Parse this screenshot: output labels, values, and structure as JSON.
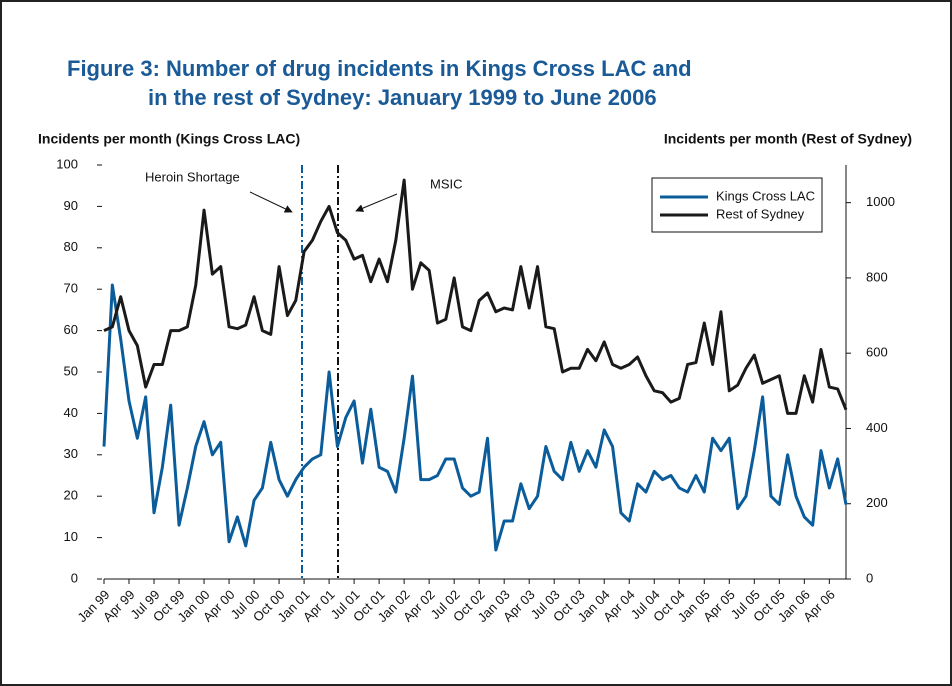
{
  "chart_data": {
    "type": "line",
    "title": [
      "Figure 3: Number of drug incidents in Kings Cross LAC and",
      "in the rest of Sydney: January 1999 to June 2006"
    ],
    "y_axis_label": "Incidents per month (Kings Cross LAC)",
    "y2_axis_label": "Incidents per month (Rest of Sydney)",
    "categories": [
      "Jan 99",
      null,
      null,
      "Apr 99",
      null,
      null,
      "Jul 99",
      null,
      null,
      "Oct 99",
      null,
      null,
      "Jan 00",
      null,
      null,
      "Apr 00",
      null,
      null,
      "Jul 00",
      null,
      null,
      "Oct 00",
      null,
      null,
      "Jan 01",
      null,
      null,
      "Apr 01",
      null,
      null,
      "Jul 01",
      null,
      null,
      "Oct 01",
      null,
      null,
      "Jan 02",
      null,
      null,
      "Apr 02",
      null,
      null,
      "Jul 02",
      null,
      null,
      "Oct 02",
      null,
      null,
      "Jan 03",
      null,
      null,
      "Apr 03",
      null,
      null,
      "Jul 03",
      null,
      null,
      "Oct 03",
      null,
      null,
      "Jan 04",
      null,
      null,
      "Apr 04",
      null,
      null,
      "Jul 04",
      null,
      null,
      "Oct 04",
      null,
      null,
      "Jan 05",
      null,
      null,
      "Apr 05",
      null,
      null,
      "Jul 05",
      null,
      null,
      "Oct 05",
      null,
      null,
      "Jan 06",
      null,
      null,
      "Apr 06",
      null,
      null
    ],
    "series": [
      {
        "name": "Kings Cross LAC",
        "color": "#0b5c9a",
        "axis": "y",
        "values": [
          32,
          71,
          58,
          43,
          34,
          44,
          16,
          27,
          42,
          13,
          22,
          32,
          38,
          30,
          33,
          9,
          15,
          8,
          19,
          22,
          33,
          24,
          20,
          24,
          27,
          29,
          30,
          50,
          32,
          39,
          43,
          28,
          41,
          27,
          26,
          21,
          34,
          49,
          24,
          24,
          25,
          29,
          29,
          22,
          20,
          21,
          34,
          7,
          14,
          14,
          23,
          17,
          20,
          32,
          26,
          24,
          33,
          26,
          31,
          27,
          36,
          32,
          16,
          14,
          23,
          21,
          26,
          24,
          25,
          22,
          21,
          25,
          21,
          34,
          31,
          34,
          17,
          20,
          31,
          44,
          20,
          18,
          30,
          20,
          15,
          13,
          31,
          22,
          29,
          18
        ]
      },
      {
        "name": "Rest of Sydney",
        "color": "#1a1a1a",
        "axis": "y2",
        "values": [
          660,
          670,
          750,
          660,
          620,
          510,
          570,
          570,
          660,
          660,
          670,
          780,
          980,
          810,
          830,
          670,
          665,
          675,
          750,
          660,
          650,
          830,
          700,
          740,
          870,
          900,
          950,
          990,
          920,
          900,
          850,
          860,
          790,
          850,
          790,
          900,
          1060,
          770,
          840,
          820,
          680,
          690,
          800,
          670,
          660,
          740,
          760,
          710,
          720,
          715,
          830,
          720,
          830,
          670,
          665,
          550,
          560,
          560,
          610,
          580,
          630,
          570,
          560,
          570,
          590,
          540,
          500,
          495,
          470,
          480,
          570,
          575,
          680,
          570,
          710,
          500,
          515,
          560,
          595,
          520,
          530,
          540,
          440,
          440,
          540,
          470,
          610,
          510,
          505,
          450
        ]
      }
    ],
    "ylim": [
      0,
      100
    ],
    "yticks": [
      0,
      10,
      20,
      30,
      40,
      50,
      60,
      70,
      80,
      90,
      100
    ],
    "y2lim": [
      0,
      1100
    ],
    "y2ticks": [
      0,
      200,
      400,
      600,
      800,
      1000
    ],
    "annotations": [
      "Heroin Shortage",
      "MSIC"
    ],
    "legend": "upper right"
  }
}
